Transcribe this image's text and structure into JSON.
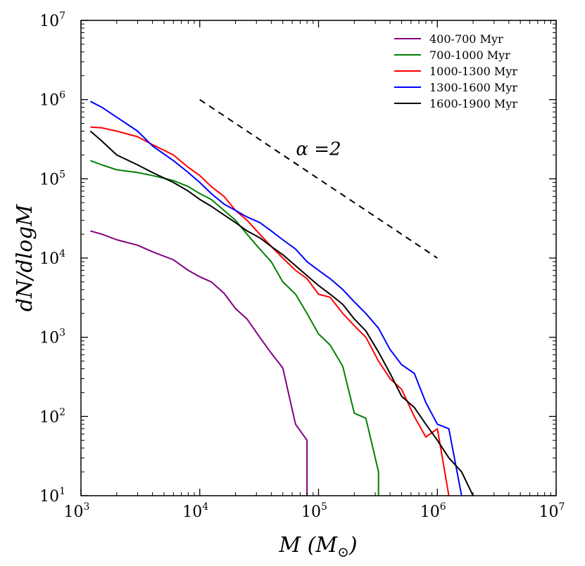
{
  "chart_data": {
    "type": "line",
    "title": "",
    "xlabel": "M (M⊙)",
    "xlabel_parts": {
      "main": "M (M",
      "sub": "⊙",
      "close": ")"
    },
    "ylabel": "dN/dlogM",
    "xscale": "log",
    "yscale": "log",
    "xlim": [
      1000,
      10000000
    ],
    "ylim": [
      10,
      10000000
    ],
    "xticks": [
      {
        "value": 1000,
        "base": "10",
        "exp": "3"
      },
      {
        "value": 10000,
        "base": "10",
        "exp": "4"
      },
      {
        "value": 100000,
        "base": "10",
        "exp": "5"
      },
      {
        "value": 1000000,
        "base": "10",
        "exp": "6"
      },
      {
        "value": 10000000,
        "base": "10",
        "exp": "7"
      }
    ],
    "yticks": [
      {
        "value": 10,
        "base": "10",
        "exp": "1"
      },
      {
        "value": 100,
        "base": "10",
        "exp": "2"
      },
      {
        "value": 1000,
        "base": "10",
        "exp": "3"
      },
      {
        "value": 10000,
        "base": "10",
        "exp": "4"
      },
      {
        "value": 100000,
        "base": "10",
        "exp": "5"
      },
      {
        "value": 1000000,
        "base": "10",
        "exp": "6"
      },
      {
        "value": 10000000,
        "base": "10",
        "exp": "7"
      }
    ],
    "legend_position": "top-right",
    "series": [
      {
        "name": "400-700 Myr",
        "color": "#800080",
        "points": [
          [
            1200,
            22000
          ],
          [
            1500,
            20000
          ],
          [
            2000,
            17000
          ],
          [
            3000,
            14500
          ],
          [
            4000,
            12000
          ],
          [
            6000,
            9500
          ],
          [
            8000,
            7000
          ],
          [
            10000,
            5800
          ],
          [
            12500,
            5000
          ],
          [
            16000,
            3600
          ],
          [
            20000,
            2300
          ],
          [
            25000,
            1700
          ],
          [
            32000,
            1000
          ],
          [
            40000,
            630
          ],
          [
            50000,
            410
          ],
          [
            64000,
            80
          ],
          [
            80000,
            50
          ],
          [
            80000,
            10
          ]
        ]
      },
      {
        "name": "700-1000 Myr",
        "color": "#008000",
        "points": [
          [
            1200,
            170000
          ],
          [
            1500,
            150000
          ],
          [
            2000,
            130000
          ],
          [
            3000,
            120000
          ],
          [
            4000,
            110000
          ],
          [
            6000,
            95000
          ],
          [
            8000,
            80000
          ],
          [
            10000,
            65000
          ],
          [
            12500,
            55000
          ],
          [
            16000,
            40000
          ],
          [
            20000,
            30000
          ],
          [
            25000,
            20000
          ],
          [
            32000,
            13000
          ],
          [
            40000,
            9000
          ],
          [
            50000,
            5000
          ],
          [
            64000,
            3500
          ],
          [
            80000,
            2000
          ],
          [
            100000,
            1100
          ],
          [
            125000,
            800
          ],
          [
            160000,
            430
          ],
          [
            200000,
            110
          ],
          [
            250000,
            95
          ],
          [
            320000,
            20
          ],
          [
            320000,
            10
          ]
        ]
      },
      {
        "name": "1000-1300 Myr",
        "color": "#ff0000",
        "points": [
          [
            1200,
            450000
          ],
          [
            1500,
            440000
          ],
          [
            2000,
            400000
          ],
          [
            3000,
            340000
          ],
          [
            4000,
            270000
          ],
          [
            6000,
            200000
          ],
          [
            8000,
            140000
          ],
          [
            10000,
            110000
          ],
          [
            12500,
            80000
          ],
          [
            16000,
            60000
          ],
          [
            20000,
            40000
          ],
          [
            25000,
            30000
          ],
          [
            32000,
            20000
          ],
          [
            40000,
            14000
          ],
          [
            50000,
            10000
          ],
          [
            64000,
            7000
          ],
          [
            80000,
            5500
          ],
          [
            100000,
            3500
          ],
          [
            125000,
            3200
          ],
          [
            160000,
            2000
          ],
          [
            200000,
            1400
          ],
          [
            250000,
            1000
          ],
          [
            320000,
            500
          ],
          [
            400000,
            300
          ],
          [
            500000,
            220
          ],
          [
            640000,
            100
          ],
          [
            800000,
            55
          ],
          [
            1000000,
            70
          ],
          [
            1250000,
            10
          ]
        ]
      },
      {
        "name": "1300-1600 Myr",
        "color": "#0000ff",
        "points": [
          [
            1200,
            950000
          ],
          [
            1500,
            800000
          ],
          [
            2000,
            600000
          ],
          [
            3000,
            400000
          ],
          [
            4000,
            260000
          ],
          [
            6000,
            170000
          ],
          [
            8000,
            120000
          ],
          [
            10000,
            90000
          ],
          [
            12500,
            65000
          ],
          [
            16000,
            48000
          ],
          [
            20000,
            40000
          ],
          [
            25000,
            33000
          ],
          [
            32000,
            28000
          ],
          [
            40000,
            22000
          ],
          [
            50000,
            17000
          ],
          [
            64000,
            13000
          ],
          [
            80000,
            9000
          ],
          [
            100000,
            7000
          ],
          [
            125000,
            5500
          ],
          [
            160000,
            4000
          ],
          [
            200000,
            2800
          ],
          [
            250000,
            2000
          ],
          [
            320000,
            1300
          ],
          [
            400000,
            700
          ],
          [
            500000,
            450
          ],
          [
            640000,
            350
          ],
          [
            800000,
            150
          ],
          [
            1000000,
            80
          ],
          [
            1250000,
            70
          ],
          [
            1600000,
            10
          ]
        ]
      },
      {
        "name": "1600-1900 Myr",
        "color": "#000000",
        "points": [
          [
            1200,
            400000
          ],
          [
            1500,
            300000
          ],
          [
            2000,
            200000
          ],
          [
            3000,
            150000
          ],
          [
            4000,
            120000
          ],
          [
            6000,
            90000
          ],
          [
            8000,
            70000
          ],
          [
            10000,
            55000
          ],
          [
            12500,
            45000
          ],
          [
            16000,
            35000
          ],
          [
            20000,
            28000
          ],
          [
            25000,
            22000
          ],
          [
            32000,
            18000
          ],
          [
            40000,
            14000
          ],
          [
            50000,
            11000
          ],
          [
            64000,
            8000
          ],
          [
            80000,
            6000
          ],
          [
            100000,
            4500
          ],
          [
            125000,
            3500
          ],
          [
            160000,
            2600
          ],
          [
            200000,
            1700
          ],
          [
            250000,
            1200
          ],
          [
            320000,
            650
          ],
          [
            400000,
            350
          ],
          [
            500000,
            180
          ],
          [
            640000,
            130
          ],
          [
            800000,
            80
          ],
          [
            1000000,
            50
          ],
          [
            1250000,
            30
          ],
          [
            1600000,
            20
          ],
          [
            2000000,
            10
          ]
        ]
      }
    ],
    "reference_line": {
      "label": "α = 2",
      "style": "dashed",
      "color": "#000000",
      "points": [
        [
          10000,
          1000000
        ],
        [
          1000000,
          10000
        ]
      ]
    },
    "annotations": [
      {
        "text": "α =2",
        "x": 100000,
        "y": 200000
      }
    ]
  }
}
